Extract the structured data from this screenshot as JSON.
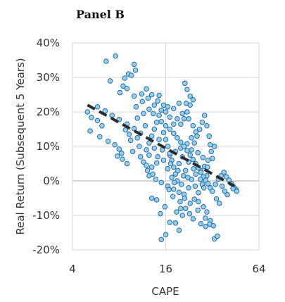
{
  "chart_data": {
    "type": "scatter",
    "title": "Panel B",
    "xlabel": "CAPE",
    "ylabel": "Real Return (Subsequent 5 Years)",
    "x_scale": "log2",
    "xlim": [
      4,
      64
    ],
    "ylim": [
      -20,
      40
    ],
    "x_ticks": [
      {
        "value": 4,
        "label": "4"
      },
      {
        "value": 16,
        "label": "16"
      },
      {
        "value": 64,
        "label": "64"
      }
    ],
    "y_ticks": [
      {
        "value": 40,
        "label": "40%"
      },
      {
        "value": 30,
        "label": "30%"
      },
      {
        "value": 20,
        "label": "20%"
      },
      {
        "value": 10,
        "label": "10%"
      },
      {
        "value": 0,
        "label": "0%"
      },
      {
        "value": -10,
        "label": "-10%"
      },
      {
        "value": -20,
        "label": "-20%"
      }
    ],
    "grid": true,
    "legend": "none",
    "marker_fill": "#8fd0f5",
    "marker_edge": "#1f5f95",
    "trend_color": "#2b2b2b",
    "trendline": {
      "x": [
        5.0,
        44.5
      ],
      "y": [
        22,
        -1.5
      ]
    },
    "series": [
      {
        "values": [
          [
            6.6,
            34.7
          ],
          [
            7.6,
            36.2
          ],
          [
            8.7,
            29.8
          ],
          [
            9.2,
            31.0
          ],
          [
            10.0,
            33.8
          ],
          [
            10.2,
            32.1
          ],
          [
            9.6,
            30.6
          ],
          [
            7.0,
            29.0
          ],
          [
            8.5,
            27.5
          ],
          [
            9.0,
            26.8
          ],
          [
            8.1,
            25.6
          ],
          [
            10.0,
            24.6
          ],
          [
            11.2,
            25.2
          ],
          [
            12.0,
            26.7
          ],
          [
            13.0,
            25.0
          ],
          [
            14.5,
            24.8
          ],
          [
            21.3,
            28.3
          ],
          [
            22.0,
            26.5
          ],
          [
            23.0,
            24.6
          ],
          [
            21.7,
            22.5
          ],
          [
            18.0,
            21.0
          ],
          [
            19.5,
            22.5
          ],
          [
            16.5,
            21.5
          ],
          [
            20.5,
            19.5
          ],
          [
            22.5,
            18.0
          ],
          [
            24.0,
            16.0
          ],
          [
            25.0,
            14.2
          ],
          [
            23.5,
            12.5
          ],
          [
            22.0,
            10.8
          ],
          [
            20.0,
            9.5
          ],
          [
            18.5,
            8.5
          ],
          [
            17.0,
            7.5
          ],
          [
            15.5,
            6.0
          ],
          [
            14.0,
            5.2
          ],
          [
            13.0,
            4.0
          ],
          [
            12.2,
            3.0
          ],
          [
            12.5,
            1.5
          ],
          [
            13.8,
            0.5
          ],
          [
            15.0,
            -0.5
          ],
          [
            16.5,
            -1.5
          ],
          [
            18.0,
            -2.4
          ],
          [
            19.5,
            -3.3
          ],
          [
            21.0,
            -3.9
          ],
          [
            22.5,
            -2.0
          ],
          [
            23.5,
            0.5
          ],
          [
            25.0,
            2.0
          ],
          [
            27.0,
            3.0
          ],
          [
            28.5,
            4.2
          ],
          [
            30.0,
            6.0
          ],
          [
            31.5,
            8.5
          ],
          [
            33.0,
            10.0
          ],
          [
            32.0,
            6.5
          ],
          [
            29.5,
            1.5
          ],
          [
            27.5,
            -1.0
          ],
          [
            26.0,
            -3.4
          ],
          [
            24.5,
            -5.3
          ],
          [
            23.0,
            -6.5
          ],
          [
            21.5,
            -8.0
          ],
          [
            20.5,
            -10.0
          ],
          [
            24.0,
            -11.0
          ],
          [
            27.0,
            -12.4
          ],
          [
            29.0,
            -13.2
          ],
          [
            31.0,
            -11.5
          ],
          [
            29.5,
            -9.0
          ],
          [
            33.0,
            -16.8
          ],
          [
            34.5,
            -16.0
          ],
          [
            18.5,
            -12.2
          ],
          [
            16.0,
            -15.6
          ],
          [
            15.0,
            -17.0
          ],
          [
            19.5,
            -14.3
          ],
          [
            14.0,
            -5.5
          ],
          [
            13.0,
            -5.0
          ],
          [
            17.0,
            -12.0
          ],
          [
            20.0,
            -8.0
          ],
          [
            26.0,
            -6.0
          ],
          [
            28.0,
            -7.5
          ],
          [
            5.0,
            20.0
          ],
          [
            5.3,
            18.4
          ],
          [
            5.8,
            17.5
          ],
          [
            6.2,
            16.0
          ],
          [
            5.2,
            14.5
          ],
          [
            6.0,
            12.8
          ],
          [
            6.8,
            11.5
          ],
          [
            7.5,
            10.5
          ],
          [
            8.0,
            9.2
          ],
          [
            8.3,
            8.0
          ],
          [
            7.8,
            7.2
          ],
          [
            8.4,
            6.3
          ],
          [
            9.0,
            5.0
          ],
          [
            9.5,
            11.8
          ],
          [
            10.5,
            12.5
          ],
          [
            11.0,
            13.8
          ],
          [
            10.0,
            15.2
          ],
          [
            9.0,
            16.5
          ],
          [
            8.0,
            17.8
          ],
          [
            7.2,
            19.0
          ],
          [
            6.5,
            20.3
          ],
          [
            5.8,
            21.5
          ],
          [
            10.5,
            18.2
          ],
          [
            11.5,
            19.5
          ],
          [
            12.5,
            20.8
          ],
          [
            13.5,
            22.0
          ],
          [
            14.2,
            23.2
          ],
          [
            15.0,
            17.2
          ],
          [
            16.0,
            16.0
          ],
          [
            17.0,
            15.0
          ],
          [
            18.0,
            13.8
          ],
          [
            19.0,
            12.5
          ],
          [
            20.0,
            11.2
          ],
          [
            21.0,
            10.0
          ],
          [
            22.0,
            8.8
          ],
          [
            23.0,
            7.5
          ],
          [
            24.0,
            6.2
          ],
          [
            25.0,
            5.0
          ],
          [
            26.0,
            3.8
          ],
          [
            27.0,
            2.5
          ],
          [
            28.0,
            1.2
          ],
          [
            29.0,
            0.2
          ],
          [
            30.0,
            -0.8
          ],
          [
            31.0,
            -2.0
          ],
          [
            32.0,
            -3.0
          ],
          [
            33.5,
            -1.0
          ],
          [
            35.0,
            0.5
          ],
          [
            36.5,
            1.5
          ],
          [
            38.0,
            2.5
          ],
          [
            39.5,
            1.2
          ],
          [
            41.0,
            0.2
          ],
          [
            42.5,
            -0.8
          ],
          [
            44.0,
            -1.8
          ],
          [
            45.5,
            -2.5
          ],
          [
            46.0,
            -3.0
          ],
          [
            43.5,
            -2.2
          ],
          [
            37.0,
            -1.5
          ],
          [
            38.5,
            -3.0
          ],
          [
            40.0,
            -4.0
          ],
          [
            34.0,
            -5.2
          ],
          [
            35.5,
            -6.5
          ],
          [
            12.0,
            9.0
          ],
          [
            12.5,
            11.0
          ],
          [
            13.0,
            13.0
          ],
          [
            13.5,
            15.0
          ],
          [
            14.0,
            17.0
          ],
          [
            14.5,
            19.0
          ],
          [
            15.0,
            20.5
          ],
          [
            15.5,
            14.0
          ],
          [
            16.0,
            12.0
          ],
          [
            16.5,
            10.0
          ],
          [
            17.0,
            8.0
          ],
          [
            17.5,
            6.0
          ],
          [
            18.0,
            4.0
          ],
          [
            18.5,
            2.0
          ],
          [
            19.0,
            0.0
          ],
          [
            11.0,
            7.0
          ],
          [
            11.5,
            5.5
          ],
          [
            12.0,
            4.5
          ],
          [
            16.5,
            3.5
          ],
          [
            17.5,
            1.0
          ],
          [
            19.5,
            5.0
          ],
          [
            20.5,
            7.0
          ],
          [
            21.5,
            3.0
          ],
          [
            22.5,
            5.5
          ],
          [
            23.5,
            9.0
          ],
          [
            24.5,
            11.0
          ],
          [
            25.5,
            13.0
          ],
          [
            26.5,
            15.0
          ],
          [
            27.5,
            17.0
          ],
          [
            28.5,
            19.0
          ],
          [
            29.5,
            16.0
          ],
          [
            30.5,
            13.0
          ],
          [
            31.0,
            10.5
          ],
          [
            20.0,
            16.5
          ],
          [
            21.0,
            18.0
          ],
          [
            22.0,
            20.0
          ],
          [
            23.0,
            22.0
          ],
          [
            24.0,
            23.5
          ],
          [
            19.0,
            18.0
          ],
          [
            18.0,
            16.5
          ],
          [
            17.0,
            18.5
          ],
          [
            16.0,
            20.0
          ],
          [
            15.5,
            22.0
          ],
          [
            14.5,
            12.0
          ],
          [
            13.5,
            9.5
          ],
          [
            12.5,
            7.5
          ],
          [
            11.8,
            16.0
          ],
          [
            10.8,
            10.0
          ],
          [
            9.8,
            8.5
          ],
          [
            9.3,
            13.5
          ],
          [
            8.8,
            14.8
          ],
          [
            10.3,
            21.5
          ],
          [
            11.3,
            23.0
          ],
          [
            12.3,
            24.0
          ],
          [
            13.3,
            19.5
          ],
          [
            19.8,
            -6.0
          ],
          [
            21.2,
            -5.0
          ],
          [
            17.8,
            -4.5
          ],
          [
            16.8,
            -2.5
          ],
          [
            15.8,
            -7.5
          ],
          [
            14.8,
            -9.5
          ],
          [
            18.8,
            -9.0
          ],
          [
            22.8,
            -9.5
          ],
          [
            25.8,
            -8.5
          ],
          [
            28.8,
            -10.8
          ],
          [
            30.8,
            -12.5
          ],
          [
            32.5,
            -13.0
          ],
          [
            20.8,
            1.5
          ],
          [
            19.2,
            3.0
          ],
          [
            17.2,
            5.0
          ],
          [
            15.2,
            9.0
          ],
          [
            14.2,
            7.0
          ],
          [
            13.2,
            2.0
          ],
          [
            24.8,
            -1.5
          ],
          [
            26.8,
            0.5
          ],
          [
            28.2,
            -2.0
          ],
          [
            29.8,
            4.0
          ],
          [
            27.8,
            6.8
          ],
          [
            25.8,
            8.2
          ],
          [
            24.2,
            3.5
          ],
          [
            22.2,
            1.0
          ],
          [
            20.2,
            -1.0
          ],
          [
            18.2,
            -0.5
          ]
        ]
      }
    ]
  }
}
